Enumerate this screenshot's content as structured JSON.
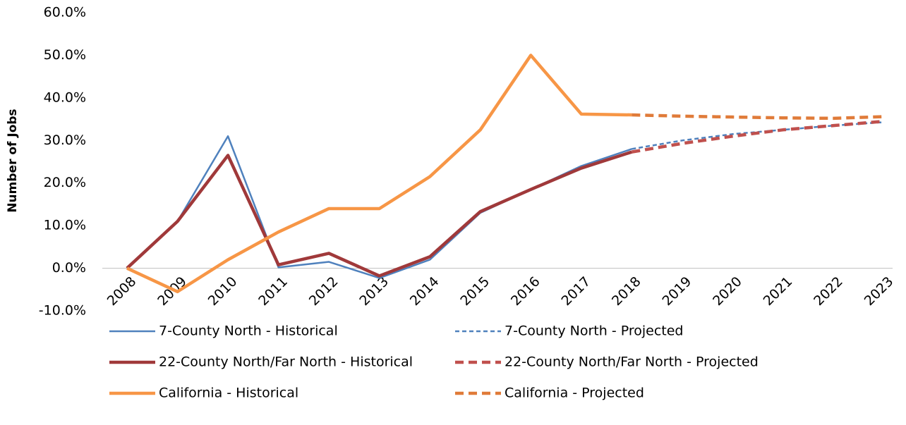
{
  "chart_data": {
    "type": "line",
    "y_label": "Number of Jobs",
    "categories": [
      "2008",
      "2009",
      "2010",
      "2011",
      "2012",
      "2013",
      "2014",
      "2015",
      "2016",
      "2017",
      "2018",
      "2019",
      "2020",
      "2021",
      "2022",
      "2023"
    ],
    "ylim": [
      -10,
      60
    ],
    "yticks": [
      {
        "value": -10,
        "label": "-10.0%"
      },
      {
        "value": 0,
        "label": "0.0%"
      },
      {
        "value": 10,
        "label": "10.0%"
      },
      {
        "value": 20,
        "label": "20.0%"
      },
      {
        "value": 30,
        "label": "30.0%"
      },
      {
        "value": 40,
        "label": "40.0%"
      },
      {
        "value": 50,
        "label": "50.0%"
      },
      {
        "value": 60,
        "label": "60.0%"
      }
    ],
    "grid": false,
    "legend": "bottom",
    "series": [
      {
        "name": "7-County North - Historical",
        "color": "#4f81bd",
        "dashed": false,
        "line_width": 2.5,
        "values": [
          0,
          11,
          31,
          0.2,
          1.5,
          -2.3,
          2,
          13,
          18.5,
          24,
          28,
          null,
          null,
          null,
          null,
          null
        ]
      },
      {
        "name": "7-County North - Projected",
        "color": "#4f81bd",
        "dashed": true,
        "line_width": 2.5,
        "values": [
          null,
          null,
          null,
          null,
          null,
          null,
          null,
          null,
          null,
          null,
          28,
          30,
          31.5,
          32.5,
          33.5,
          34.3
        ]
      },
      {
        "name": "22-County North/Far North - Historical",
        "color": "#a0393a",
        "dashed": false,
        "line_width": 4.5,
        "values": [
          0,
          11,
          26.5,
          0.8,
          3.5,
          -1.8,
          2.7,
          13.3,
          18.5,
          23.5,
          27.3,
          null,
          null,
          null,
          null,
          null
        ]
      },
      {
        "name": "22-County North/Far North - Projected",
        "color": "#c0504d",
        "dashed": true,
        "line_width": 4.5,
        "values": [
          null,
          null,
          null,
          null,
          null,
          null,
          null,
          null,
          null,
          null,
          27.3,
          29.3,
          31,
          32.5,
          33.5,
          34.5
        ]
      },
      {
        "name": "California - Historical",
        "color": "#f79646",
        "dashed": false,
        "line_width": 4.5,
        "values": [
          0,
          -5.5,
          2,
          8.5,
          14,
          14,
          21.5,
          32.5,
          50,
          36.2,
          36,
          null,
          null,
          null,
          null,
          null
        ]
      },
      {
        "name": "California - Projected",
        "color": "#e07b39",
        "dashed": true,
        "line_width": 4.5,
        "values": [
          null,
          null,
          null,
          null,
          null,
          null,
          null,
          null,
          null,
          null,
          36,
          35.7,
          35.5,
          35.3,
          35.2,
          35.6
        ]
      }
    ]
  }
}
